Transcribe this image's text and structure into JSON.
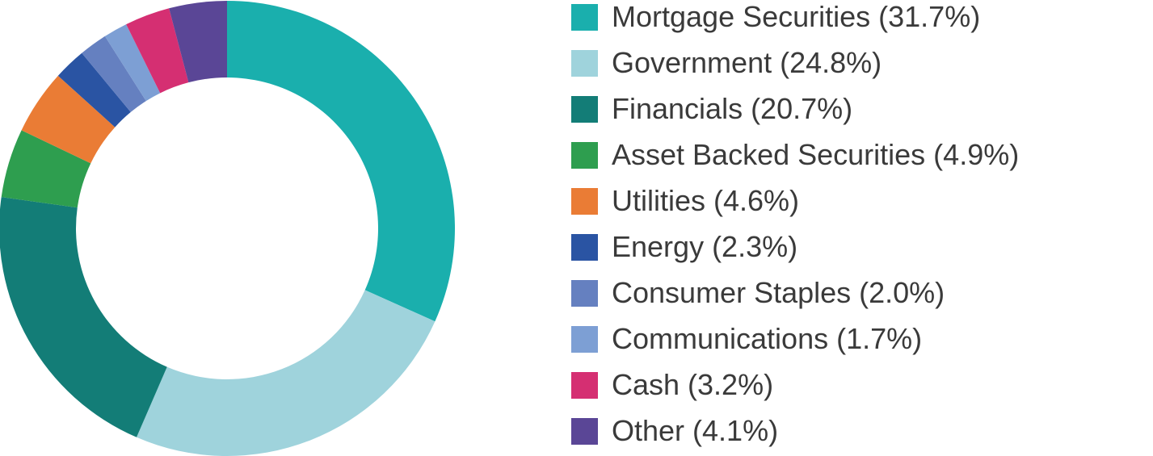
{
  "chart_data": {
    "type": "donut",
    "categories": [
      "Mortgage Securities (31.7%)",
      "Government (24.8%)",
      "Financials (20.7%)",
      "Asset Backed Securities (4.9%)",
      "Utilities (4.6%)",
      "Energy (2.3%)",
      "Consumer Staples (2.0%)",
      "Communications (1.7%)",
      "Cash (3.2%)",
      "Other (4.1%)"
    ],
    "values": [
      31.7,
      24.8,
      20.7,
      4.9,
      4.6,
      2.3,
      2.0,
      1.7,
      3.2,
      4.1
    ],
    "colors": [
      "#1aafad",
      "#9fd3dc",
      "#137d77",
      "#2e9e4f",
      "#ea7c35",
      "#2a54a3",
      "#6580c0",
      "#7d9fd4",
      "#d52f72",
      "#5a4696"
    ]
  }
}
